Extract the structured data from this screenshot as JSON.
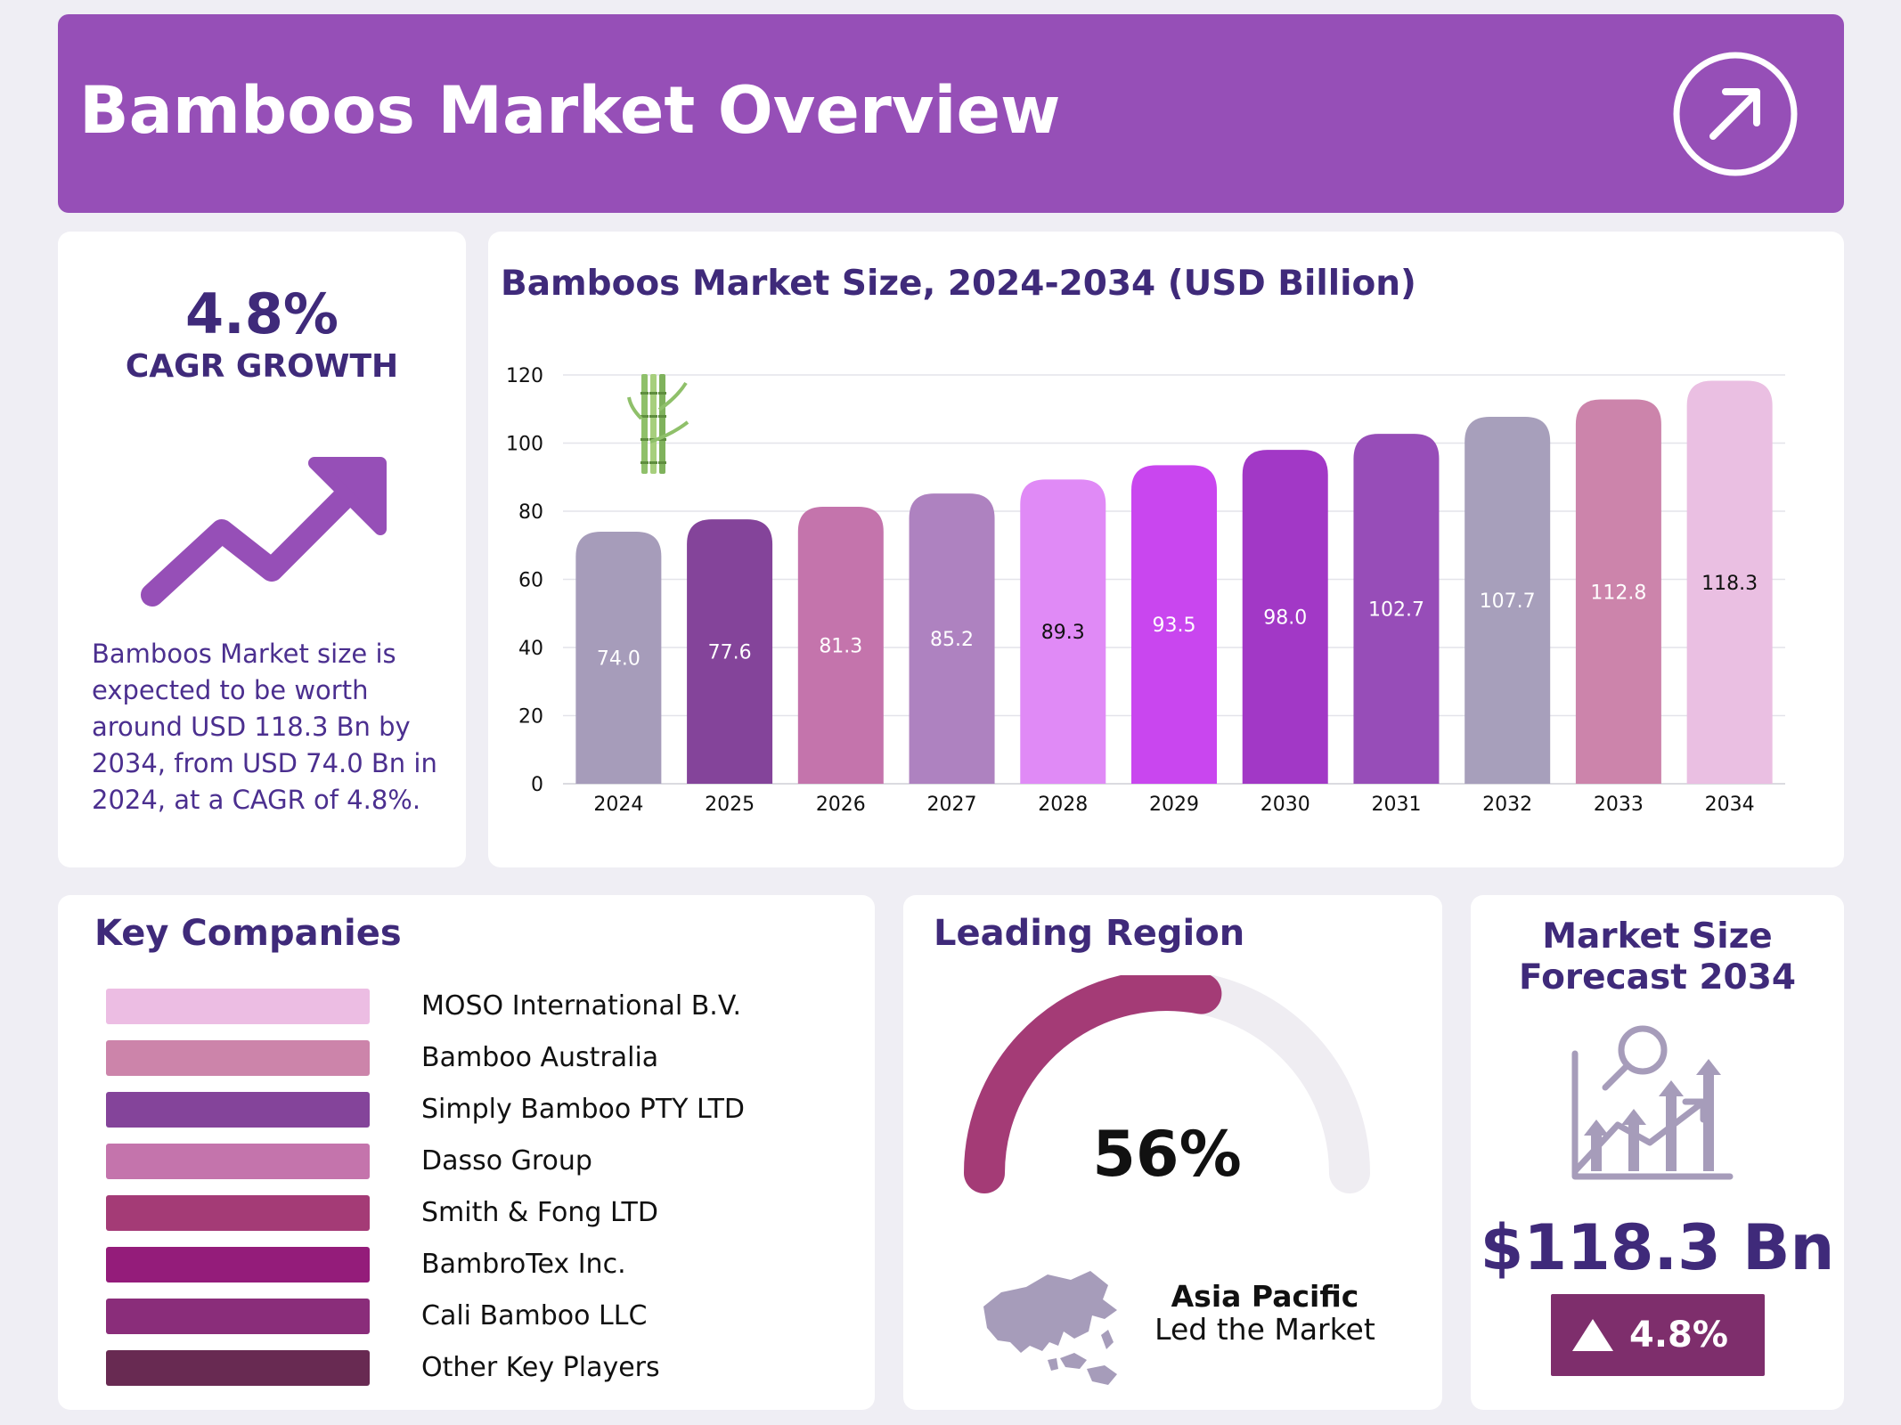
{
  "header": {
    "title": "Bamboos Market Overview",
    "icon": "arrow-up-right-circle-icon"
  },
  "cagr": {
    "value": "4.8%",
    "label": "CAGR GROWTH",
    "icon": "trend-up-arrow-icon",
    "description": "Bamboos Market size is expected to be worth around USD 118.3 Bn by 2034, from USD 74.0 Bn in 2024, at a CAGR of 4.8%."
  },
  "chart_data": {
    "type": "bar",
    "title": "Bamboos Market Size, 2024-2034 (USD Billion)",
    "xlabel": "",
    "ylabel": "",
    "categories": [
      "2024",
      "2025",
      "2026",
      "2027",
      "2028",
      "2029",
      "2030",
      "2031",
      "2032",
      "2033",
      "2034"
    ],
    "values": [
      74.0,
      77.6,
      81.3,
      85.2,
      89.3,
      93.5,
      98.0,
      102.7,
      107.7,
      112.8,
      118.3
    ],
    "value_labels": [
      "74.0",
      "77.6",
      "81.3",
      "85.2",
      "89.3",
      "93.5",
      "98.0",
      "102.7",
      "107.7",
      "112.8",
      "118.3"
    ],
    "ylim": [
      0,
      120
    ],
    "yticks": [
      0,
      20,
      40,
      60,
      80,
      100,
      120
    ],
    "grid": true,
    "legend": "none",
    "bar_colors": [
      "#a69cba",
      "#84449a",
      "#c474ac",
      "#ae82c0",
      "#e08af6",
      "#c946ef",
      "#a238c6",
      "#974db8",
      "#a79fbb",
      "#cc84ab",
      "#eabfe2"
    ],
    "label_colors": [
      "#ffffff",
      "#ffffff",
      "#ffffff",
      "#ffffff",
      "#111111",
      "#ffffff",
      "#ffffff",
      "#ffffff",
      "#ffffff",
      "#ffffff",
      "#111111"
    ],
    "decoration_icon": "bamboo-icon"
  },
  "companies": {
    "title": "Key Companies",
    "items": [
      {
        "name": "MOSO International B.V.",
        "color": "#ecbde3"
      },
      {
        "name": "Bamboo Australia",
        "color": "#cc84aa"
      },
      {
        "name": "Simply Bamboo PTY LTD",
        "color": "#84449a"
      },
      {
        "name": "Dasso Group",
        "color": "#c474ac"
      },
      {
        "name": "Smith & Fong LTD",
        "color": "#a43b76"
      },
      {
        "name": "BambroTex Inc.",
        "color": "#941c7a"
      },
      {
        "name": "Cali Bamboo LLC",
        "color": "#8a2d7a"
      },
      {
        "name": "Other Key Players",
        "color": "#682a52"
      }
    ]
  },
  "region": {
    "title": "Leading Region",
    "share": 56,
    "share_label": "56%",
    "name": "Asia Pacific",
    "subtitle": "Led the Market",
    "gauge_color": "#a43b76",
    "track_color": "#efedf2",
    "icon": "asia-pacific-map-icon"
  },
  "forecast": {
    "title_line1": "Market Size",
    "title_line2": "Forecast 2034",
    "value": "$118.3 Bn",
    "growth": "4.8%",
    "icon": "growth-chart-magnifier-icon",
    "badge_icon": "triangle-up-icon"
  }
}
